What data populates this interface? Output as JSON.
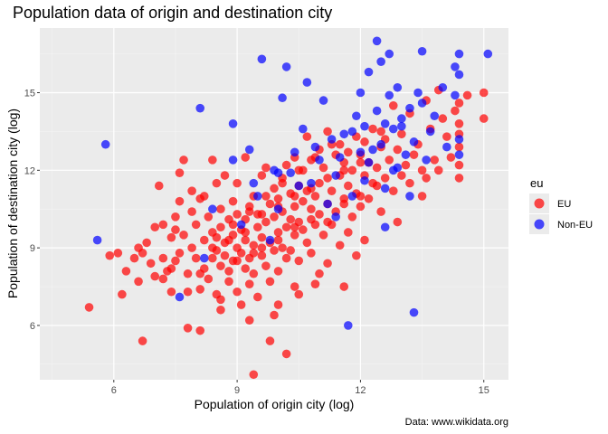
{
  "chart_data": {
    "type": "scatter",
    "title": "Population data of origin and destination city",
    "xlabel": "Population of origin city (log)",
    "ylabel": "Population of destination city (log)",
    "caption": "Data: www.wikidata.org",
    "xlim": [
      4.2,
      15.6
    ],
    "ylim": [
      3.9,
      17.5
    ],
    "xticks": [
      6,
      9,
      12,
      15
    ],
    "yticks": [
      6,
      9,
      12,
      15
    ],
    "xtick_labels": [
      "6",
      "9",
      "12",
      "15"
    ],
    "ytick_labels": [
      "6",
      "9",
      "12",
      "15"
    ],
    "grid": true,
    "legend_position": "right",
    "legend_title": "eu",
    "series": [
      {
        "name": "EU",
        "color": "#ff0000",
        "points": [
          [
            5.4,
            6.7
          ],
          [
            5.9,
            8.7
          ],
          [
            6.1,
            8.8
          ],
          [
            6.2,
            7.2
          ],
          [
            6.3,
            8.1
          ],
          [
            6.5,
            8.6
          ],
          [
            6.6,
            7.7
          ],
          [
            6.7,
            5.4
          ],
          [
            6.7,
            8.8
          ],
          [
            6.8,
            9.2
          ],
          [
            6.9,
            8.4
          ],
          [
            7.0,
            7.9
          ],
          [
            7.0,
            9.8
          ],
          [
            7.1,
            11.4
          ],
          [
            7.2,
            8.6
          ],
          [
            7.2,
            9.9
          ],
          [
            7.3,
            8.1
          ],
          [
            7.4,
            7.3
          ],
          [
            7.4,
            9.4
          ],
          [
            7.5,
            8.5
          ],
          [
            7.5,
            9.7
          ],
          [
            7.5,
            10.2
          ],
          [
            7.6,
            8.8
          ],
          [
            7.6,
            10.8
          ],
          [
            7.6,
            11.9
          ],
          [
            7.7,
            12.4
          ],
          [
            7.7,
            9.5
          ],
          [
            7.8,
            8.0
          ],
          [
            7.8,
            7.3
          ],
          [
            7.8,
            5.9
          ],
          [
            7.9,
            9.0
          ],
          [
            7.9,
            10.4
          ],
          [
            7.9,
            11.2
          ],
          [
            8.0,
            8.6
          ],
          [
            8.0,
            9.9
          ],
          [
            8.1,
            7.4
          ],
          [
            8.1,
            10.9
          ],
          [
            8.1,
            5.8
          ],
          [
            8.2,
            8.2
          ],
          [
            8.2,
            9.3
          ],
          [
            8.2,
            11.0
          ],
          [
            8.3,
            7.8
          ],
          [
            8.3,
            10.2
          ],
          [
            8.4,
            8.6
          ],
          [
            8.4,
            9.6
          ],
          [
            8.4,
            12.4
          ],
          [
            8.5,
            7.2
          ],
          [
            8.5,
            8.9
          ],
          [
            8.5,
            11.5
          ],
          [
            8.6,
            8.3
          ],
          [
            8.6,
            9.8
          ],
          [
            8.6,
            10.5
          ],
          [
            8.6,
            7.0
          ],
          [
            8.7,
            8.7
          ],
          [
            8.7,
            9.2
          ],
          [
            8.7,
            11.8
          ],
          [
            8.8,
            7.7
          ],
          [
            8.8,
            10.1
          ],
          [
            8.8,
            8.1
          ],
          [
            8.9,
            9.5
          ],
          [
            8.9,
            10.8
          ],
          [
            8.9,
            8.5
          ],
          [
            9.0,
            9.0
          ],
          [
            9.0,
            7.3
          ],
          [
            9.0,
            10.3
          ],
          [
            9.0,
            11.5
          ],
          [
            9.1,
            8.8
          ],
          [
            9.1,
            9.7
          ],
          [
            9.1,
            6.8
          ],
          [
            9.2,
            8.2
          ],
          [
            9.2,
            10.1
          ],
          [
            9.2,
            9.3
          ],
          [
            9.2,
            12.5
          ],
          [
            9.3,
            8.6
          ],
          [
            9.3,
            10.6
          ],
          [
            9.3,
            7.6
          ],
          [
            9.4,
            9.1
          ],
          [
            9.4,
            11.0
          ],
          [
            9.4,
            4.1
          ],
          [
            9.4,
            8.0
          ],
          [
            9.5,
            9.8
          ],
          [
            9.5,
            10.3
          ],
          [
            9.5,
            7.1
          ],
          [
            9.6,
            8.7
          ],
          [
            9.6,
            9.4
          ],
          [
            9.6,
            11.8
          ],
          [
            9.7,
            10.0
          ],
          [
            9.7,
            8.3
          ],
          [
            9.7,
            12.1
          ],
          [
            9.8,
            9.2
          ],
          [
            9.8,
            10.7
          ],
          [
            9.8,
            5.4
          ],
          [
            9.8,
            7.7
          ],
          [
            9.9,
            8.9
          ],
          [
            9.9,
            10.2
          ],
          [
            9.9,
            11.3
          ],
          [
            10.0,
            9.6
          ],
          [
            10.0,
            8.1
          ],
          [
            10.0,
            10.9
          ],
          [
            10.0,
            6.8
          ],
          [
            10.1,
            9.0
          ],
          [
            10.1,
            11.7
          ],
          [
            10.1,
            10.4
          ],
          [
            10.2,
            8.6
          ],
          [
            10.2,
            9.8
          ],
          [
            10.2,
            4.9
          ],
          [
            10.2,
            12.2
          ],
          [
            10.3,
            10.1
          ],
          [
            10.3,
            11.1
          ],
          [
            10.3,
            8.9
          ],
          [
            10.4,
            9.5
          ],
          [
            10.4,
            12.5
          ],
          [
            10.4,
            10.6
          ],
          [
            10.4,
            7.5
          ],
          [
            10.5,
            10.0
          ],
          [
            10.5,
            11.4
          ],
          [
            10.5,
            8.5
          ],
          [
            10.6,
            9.7
          ],
          [
            10.6,
            12.0
          ],
          [
            10.6,
            10.8
          ],
          [
            10.7,
            9.2
          ],
          [
            10.7,
            11.2
          ],
          [
            10.7,
            13.3
          ],
          [
            10.8,
            10.5
          ],
          [
            10.8,
            8.8
          ],
          [
            10.8,
            12.4
          ],
          [
            10.9,
            11.0
          ],
          [
            10.9,
            9.9
          ],
          [
            10.9,
            7.6
          ],
          [
            11.0,
            10.3
          ],
          [
            11.0,
            12.8
          ],
          [
            11.0,
            11.5
          ],
          [
            11.1,
            9.5
          ],
          [
            11.1,
            12.1
          ],
          [
            11.2,
            10.7
          ],
          [
            11.2,
            13.5
          ],
          [
            11.2,
            8.4
          ],
          [
            11.3,
            11.2
          ],
          [
            11.3,
            9.9
          ],
          [
            11.4,
            12.6
          ],
          [
            11.4,
            10.4
          ],
          [
            11.5,
            11.8
          ],
          [
            11.5,
            9.1
          ],
          [
            11.5,
            13.0
          ],
          [
            11.6,
            10.9
          ],
          [
            11.6,
            12.3
          ],
          [
            11.7,
            11.4
          ],
          [
            11.7,
            9.6
          ],
          [
            11.8,
            12.0
          ],
          [
            11.8,
            10.2
          ],
          [
            11.9,
            13.3
          ],
          [
            11.9,
            11.1
          ],
          [
            12.0,
            12.6
          ],
          [
            12.0,
            10.6
          ],
          [
            12.1,
            11.8
          ],
          [
            12.1,
            9.3
          ],
          [
            12.2,
            12.3
          ],
          [
            12.2,
            10.9
          ],
          [
            12.3,
            13.6
          ],
          [
            12.3,
            11.5
          ],
          [
            12.4,
            12.1
          ],
          [
            12.5,
            10.4
          ],
          [
            12.5,
            12.9
          ],
          [
            12.6,
            11.7
          ],
          [
            12.6,
            13.2
          ],
          [
            12.7,
            12.4
          ],
          [
            12.8,
            11.2
          ],
          [
            12.8,
            14.5
          ],
          [
            12.9,
            12.8
          ],
          [
            13.0,
            11.8
          ],
          [
            13.0,
            13.4
          ],
          [
            13.1,
            12.2
          ],
          [
            13.2,
            14.2
          ],
          [
            13.2,
            11.5
          ],
          [
            13.3,
            12.6
          ],
          [
            13.4,
            13.0
          ],
          [
            13.5,
            12.0
          ],
          [
            13.6,
            14.7
          ],
          [
            13.6,
            11.7
          ],
          [
            13.7,
            13.6
          ],
          [
            13.8,
            12.4
          ],
          [
            13.9,
            15.1
          ],
          [
            14.0,
            14.0
          ],
          [
            14.1,
            13.3
          ],
          [
            14.2,
            12.5
          ],
          [
            14.3,
            14.3
          ],
          [
            14.4,
            13.8
          ],
          [
            14.4,
            12.9
          ],
          [
            14.4,
            12.2
          ],
          [
            14.4,
            13.4
          ],
          [
            14.4,
            14.6
          ],
          [
            14.4,
            11.7
          ],
          [
            14.6,
            14.9
          ],
          [
            15.0,
            15.0
          ],
          [
            15.0,
            14.0
          ],
          [
            13.9,
            12.0
          ],
          [
            13.5,
            11.0
          ],
          [
            12.9,
            10.0
          ],
          [
            11.9,
            8.7
          ],
          [
            11.6,
            7.5
          ],
          [
            11.0,
            8.0
          ],
          [
            10.5,
            7.2
          ],
          [
            9.9,
            6.4
          ],
          [
            9.3,
            6.2
          ],
          [
            8.6,
            6.6
          ],
          [
            7.2,
            7.8
          ],
          [
            6.6,
            9.0
          ],
          [
            7.4,
            8.2
          ],
          [
            8.1,
            8.0
          ],
          [
            8.5,
            9.4
          ],
          [
            8.9,
            9.9
          ],
          [
            9.3,
            10.4
          ],
          [
            9.7,
            11.0
          ],
          [
            10.1,
            11.5
          ],
          [
            10.5,
            12.0
          ],
          [
            10.9,
            12.5
          ],
          [
            11.3,
            13.0
          ],
          [
            11.7,
            12.7
          ],
          [
            12.1,
            13.1
          ],
          [
            12.5,
            13.5
          ],
          [
            9.6,
            9.0
          ],
          [
            10.0,
            9.3
          ],
          [
            10.4,
            9.8
          ],
          [
            10.8,
            10.1
          ],
          [
            11.2,
            10.0
          ],
          [
            11.6,
            10.7
          ],
          [
            12.0,
            11.0
          ],
          [
            12.4,
            11.4
          ],
          [
            8.4,
            9.0
          ],
          [
            8.8,
            9.3
          ],
          [
            9.2,
            9.6
          ],
          [
            9.6,
            10.3
          ],
          [
            10.0,
            10.6
          ],
          [
            10.4,
            11.0
          ],
          [
            10.8,
            11.3
          ],
          [
            11.2,
            11.7
          ],
          [
            11.6,
            12.0
          ],
          [
            12.0,
            12.3
          ],
          [
            9.0,
            8.5
          ],
          [
            9.4,
            8.8
          ]
        ]
      },
      {
        "name": "Non-EU",
        "color": "#0000ff",
        "points": [
          [
            5.8,
            13.0
          ],
          [
            5.6,
            9.3
          ],
          [
            7.6,
            7.1
          ],
          [
            8.1,
            14.4
          ],
          [
            8.2,
            8.6
          ],
          [
            8.4,
            10.5
          ],
          [
            8.9,
            12.4
          ],
          [
            8.9,
            13.8
          ],
          [
            9.1,
            9.9
          ],
          [
            9.3,
            12.8
          ],
          [
            9.5,
            11.0
          ],
          [
            9.6,
            16.3
          ],
          [
            9.8,
            9.3
          ],
          [
            9.9,
            12.0
          ],
          [
            10.0,
            10.5
          ],
          [
            10.1,
            14.8
          ],
          [
            10.2,
            16.0
          ],
          [
            10.3,
            11.9
          ],
          [
            10.4,
            12.7
          ],
          [
            10.6,
            13.6
          ],
          [
            10.7,
            15.4
          ],
          [
            10.8,
            11.5
          ],
          [
            11.0,
            12.4
          ],
          [
            11.1,
            14.7
          ],
          [
            11.2,
            10.7
          ],
          [
            11.3,
            13.2
          ],
          [
            11.4,
            11.8
          ],
          [
            11.5,
            12.5
          ],
          [
            11.6,
            13.4
          ],
          [
            11.7,
            6.0
          ],
          [
            11.8,
            11.0
          ],
          [
            11.9,
            14.1
          ],
          [
            12.0,
            12.7
          ],
          [
            12.1,
            13.7
          ],
          [
            12.1,
            11.6
          ],
          [
            12.2,
            15.8
          ],
          [
            12.3,
            12.8
          ],
          [
            12.4,
            14.3
          ],
          [
            12.4,
            17.0
          ],
          [
            12.5,
            13.0
          ],
          [
            12.5,
            16.2
          ],
          [
            12.6,
            11.3
          ],
          [
            12.7,
            14.9
          ],
          [
            12.7,
            16.5
          ],
          [
            12.8,
            13.6
          ],
          [
            12.9,
            12.1
          ],
          [
            12.9,
            15.2
          ],
          [
            13.0,
            14.0
          ],
          [
            13.1,
            12.6
          ],
          [
            13.2,
            14.4
          ],
          [
            13.2,
            11.0
          ],
          [
            13.3,
            6.5
          ],
          [
            13.3,
            13.1
          ],
          [
            13.4,
            15.0
          ],
          [
            13.5,
            16.6
          ],
          [
            13.5,
            14.6
          ],
          [
            13.6,
            12.4
          ],
          [
            13.7,
            13.5
          ],
          [
            13.8,
            14.1
          ],
          [
            14.0,
            15.2
          ],
          [
            14.1,
            12.9
          ],
          [
            14.3,
            14.9
          ],
          [
            14.3,
            16.0
          ],
          [
            14.4,
            16.5
          ],
          [
            14.4,
            15.7
          ],
          [
            14.4,
            13.2
          ],
          [
            14.4,
            12.6
          ],
          [
            15.1,
            16.5
          ],
          [
            12.6,
            13.8
          ],
          [
            12.0,
            15.0
          ],
          [
            11.4,
            10.2
          ],
          [
            10.9,
            12.9
          ],
          [
            10.5,
            11.4
          ],
          [
            10.0,
            11.9
          ],
          [
            12.8,
            12.0
          ],
          [
            13.0,
            13.7
          ],
          [
            12.2,
            12.3
          ],
          [
            11.8,
            13.5
          ],
          [
            12.6,
            9.8
          ],
          [
            9.4,
            11.5
          ]
        ]
      }
    ]
  }
}
